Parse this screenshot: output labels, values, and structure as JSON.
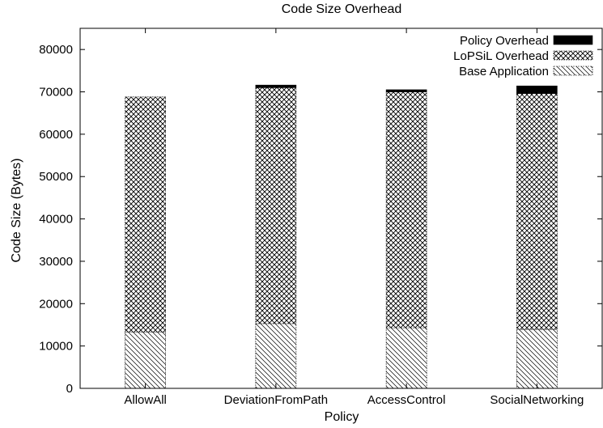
{
  "chart_data": {
    "type": "bar",
    "stacked": true,
    "title": "Code Size Overhead",
    "xlabel": "Policy",
    "ylabel": "Code Size (Bytes)",
    "ylim": [
      0,
      85000
    ],
    "yticks": [
      0,
      10000,
      20000,
      30000,
      40000,
      50000,
      60000,
      70000,
      80000
    ],
    "ytick_labels": [
      "0",
      "10000",
      "20000",
      "30000",
      "40000",
      "50000",
      "60000",
      "70000",
      "80000"
    ],
    "categories": [
      "AllowAll",
      "DeviationFromPath",
      "AccessControl",
      "SocialNetworking"
    ],
    "series": [
      {
        "name": "Base Application",
        "pattern": "diagonal-hatch",
        "values": [
          13300,
          15300,
          14300,
          13900
        ]
      },
      {
        "name": "LoPSiL Overhead",
        "pattern": "crosshatch",
        "values": [
          55500,
          55700,
          55700,
          55700
        ]
      },
      {
        "name": "Policy Overhead",
        "pattern": "solid",
        "color": "#000000",
        "values": [
          0,
          600,
          500,
          1800
        ]
      }
    ],
    "legend_position": "top-right",
    "legend_order": [
      "Policy Overhead",
      "LoPSiL Overhead",
      "Base Application"
    ],
    "grid": false
  }
}
